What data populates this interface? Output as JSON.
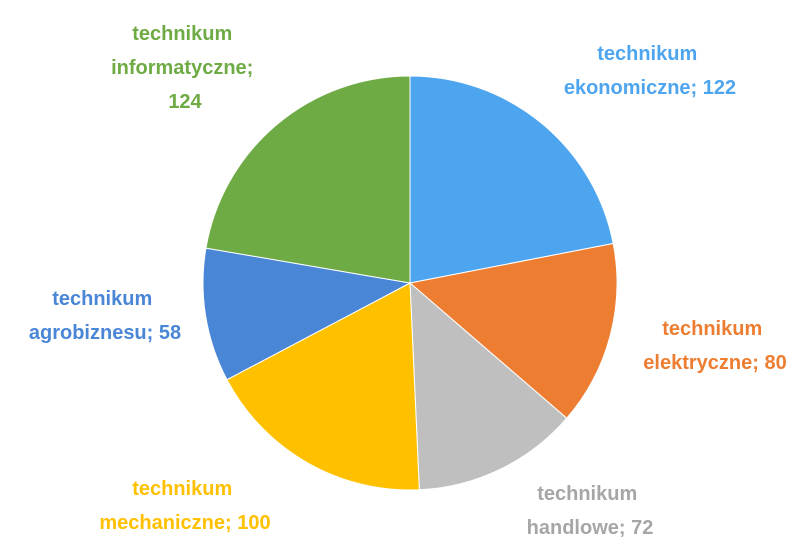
{
  "chart_data": {
    "type": "pie",
    "values": [
      122,
      80,
      72,
      100,
      58,
      124
    ],
    "value_labels": [
      "technikum ekonomiczne; 122",
      "technikum elektryczne; 80",
      "technikum handlowe; 72",
      "technikum mechaniczne; 100",
      "technikum agrobiznesu; 58",
      "technikum informatyczne; 124"
    ],
    "colors": [
      "#4ea5ef",
      "#ed7d31",
      "#bfbfbf",
      "#ffc000",
      "#4a86d6",
      "#6eab45"
    ]
  }
}
